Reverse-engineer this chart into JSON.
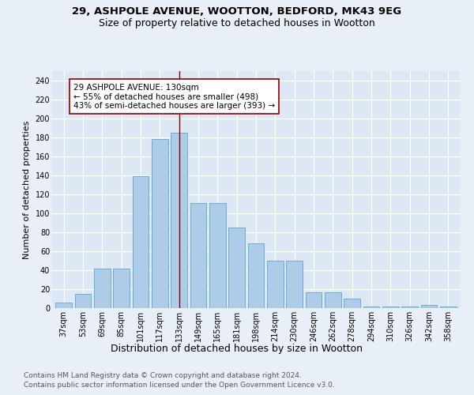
{
  "title_line1": "29, ASHPOLE AVENUE, WOOTTON, BEDFORD, MK43 9EG",
  "title_line2": "Size of property relative to detached houses in Wootton",
  "xlabel": "Distribution of detached houses by size in Wootton",
  "ylabel": "Number of detached properties",
  "bar_labels": [
    "37sqm",
    "53sqm",
    "69sqm",
    "85sqm",
    "101sqm",
    "117sqm",
    "133sqm",
    "149sqm",
    "165sqm",
    "181sqm",
    "198sqm",
    "214sqm",
    "230sqm",
    "246sqm",
    "262sqm",
    "278sqm",
    "294sqm",
    "310sqm",
    "326sqm",
    "342sqm",
    "358sqm"
  ],
  "bar_values": [
    6,
    15,
    42,
    42,
    139,
    178,
    185,
    111,
    111,
    85,
    68,
    50,
    50,
    17,
    17,
    10,
    2,
    2,
    2,
    3,
    2
  ],
  "bar_color": "#aecce8",
  "bar_edge_color": "#6aaed6",
  "vline_color": "#8b0000",
  "annotation_box_edge_color": "#8b0000",
  "annotation_text": "29 ASHPOLE AVENUE: 130sqm\n← 55% of detached houses are smaller (498)\n43% of semi-detached houses are larger (393) →",
  "ylim": [
    0,
    250
  ],
  "yticks": [
    0,
    20,
    40,
    60,
    80,
    100,
    120,
    140,
    160,
    180,
    200,
    220,
    240
  ],
  "footer_line1": "Contains HM Land Registry data © Crown copyright and database right 2024.",
  "footer_line2": "Contains public sector information licensed under the Open Government Licence v3.0.",
  "background_color": "#e8eff7",
  "plot_bg_color": "#dde8f4",
  "grid_color": "#ffffff",
  "title1_fontsize": 9.5,
  "title2_fontsize": 9,
  "xlabel_fontsize": 9,
  "ylabel_fontsize": 8,
  "tick_fontsize": 7,
  "annotation_fontsize": 7.5,
  "footer_fontsize": 6.5
}
